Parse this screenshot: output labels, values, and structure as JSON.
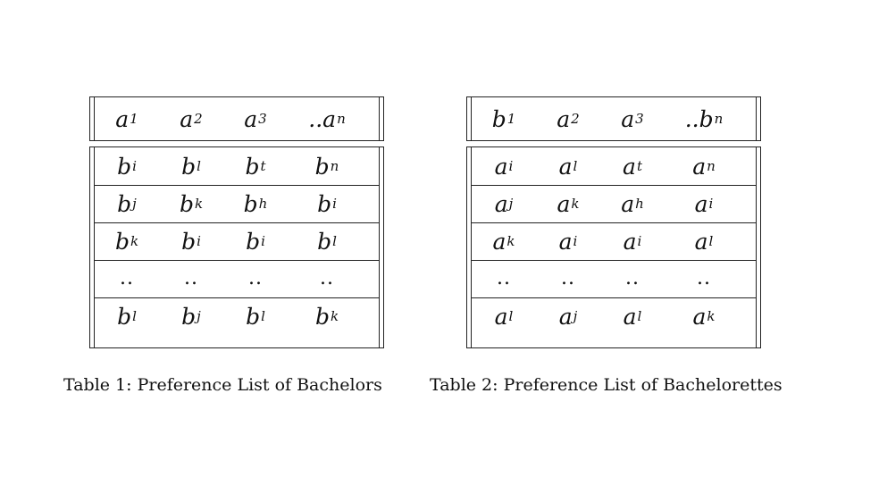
{
  "tables": [
    {
      "header": [
        {
          "base": "a",
          "sub": "1"
        },
        {
          "base": "a",
          "sub": "2"
        },
        {
          "base": "a",
          "sub": "3"
        },
        {
          "base": "..a",
          "sub": "n"
        }
      ],
      "rows": [
        [
          {
            "base": "b",
            "sub": "i"
          },
          {
            "base": "b",
            "sub": "l"
          },
          {
            "base": "b",
            "sub": "t"
          },
          {
            "base": "b",
            "sub": "n"
          }
        ],
        [
          {
            "base": "b",
            "sub": "j"
          },
          {
            "base": "b",
            "sub": "k"
          },
          {
            "base": "b",
            "sub": "h"
          },
          {
            "base": "b",
            "sub": "i"
          }
        ],
        [
          {
            "base": "b",
            "sub": "k"
          },
          {
            "base": "b",
            "sub": "i"
          },
          {
            "base": "b",
            "sub": "i"
          },
          {
            "base": "b",
            "sub": "l"
          }
        ],
        [
          {
            "base": "..",
            "sub": ""
          },
          {
            "base": "..",
            "sub": ""
          },
          {
            "base": "..",
            "sub": ""
          },
          {
            "base": "..",
            "sub": ""
          }
        ],
        [
          {
            "base": "b",
            "sub": "l"
          },
          {
            "base": "b",
            "sub": "j"
          },
          {
            "base": "b",
            "sub": "l"
          },
          {
            "base": "b",
            "sub": "k"
          }
        ]
      ],
      "caption": "Table 1:  Preference List of Bachelors"
    },
    {
      "header": [
        {
          "base": "b",
          "sub": "1"
        },
        {
          "base": "a",
          "sub": "2"
        },
        {
          "base": "a",
          "sub": "3"
        },
        {
          "base": "..b",
          "sub": "n"
        }
      ],
      "rows": [
        [
          {
            "base": "a",
            "sub": "i"
          },
          {
            "base": "a",
            "sub": "l"
          },
          {
            "base": "a",
            "sub": "t"
          },
          {
            "base": "a",
            "sub": "n"
          }
        ],
        [
          {
            "base": "a",
            "sub": "j"
          },
          {
            "base": "a",
            "sub": "k"
          },
          {
            "base": "a",
            "sub": "h"
          },
          {
            "base": "a",
            "sub": "i"
          }
        ],
        [
          {
            "base": "a",
            "sub": "k"
          },
          {
            "base": "a",
            "sub": "i"
          },
          {
            "base": "a",
            "sub": "i"
          },
          {
            "base": "a",
            "sub": "l"
          }
        ],
        [
          {
            "base": "..",
            "sub": ""
          },
          {
            "base": "..",
            "sub": ""
          },
          {
            "base": "..",
            "sub": ""
          },
          {
            "base": "..",
            "sub": ""
          }
        ],
        [
          {
            "base": "a",
            "sub": "l"
          },
          {
            "base": "a",
            "sub": "j"
          },
          {
            "base": "a",
            "sub": "l"
          },
          {
            "base": "a",
            "sub": "k"
          }
        ]
      ],
      "caption": "Table 2:  Preference List of Bachelorettes"
    }
  ]
}
